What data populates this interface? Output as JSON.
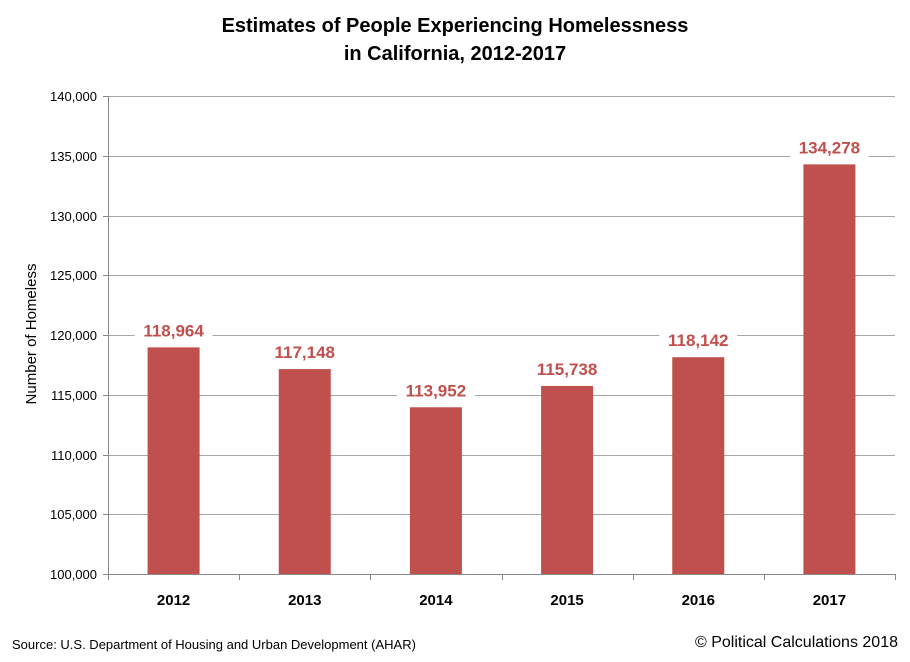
{
  "chart_data": {
    "type": "bar",
    "title_line1": "Estimates of People Experiencing Homelessness",
    "title_line2": "in California, 2012-2017",
    "xlabel": "",
    "ylabel": "Number of Homeless",
    "categories": [
      "2012",
      "2013",
      "2014",
      "2015",
      "2016",
      "2017"
    ],
    "values": [
      118964,
      117148,
      113952,
      115738,
      118142,
      134278
    ],
    "value_labels": [
      "118,964",
      "117,148",
      "113,952",
      "115,738",
      "118,142",
      "134,278"
    ],
    "ylim": [
      100000,
      140000
    ],
    "yticks": [
      100000,
      105000,
      110000,
      115000,
      120000,
      125000,
      130000,
      135000,
      140000
    ],
    "ytick_labels": [
      "100,000",
      "105,000",
      "110,000",
      "115,000",
      "120,000",
      "125,000",
      "130,000",
      "135,000",
      "140,000"
    ],
    "grid": true,
    "bar_color": "#C0504D",
    "label_color": "#C0504D"
  },
  "footer": {
    "source": "Source: U.S. Department of Housing and Urban Development (AHAR)",
    "copyright": "© Political Calculations 2018"
  }
}
